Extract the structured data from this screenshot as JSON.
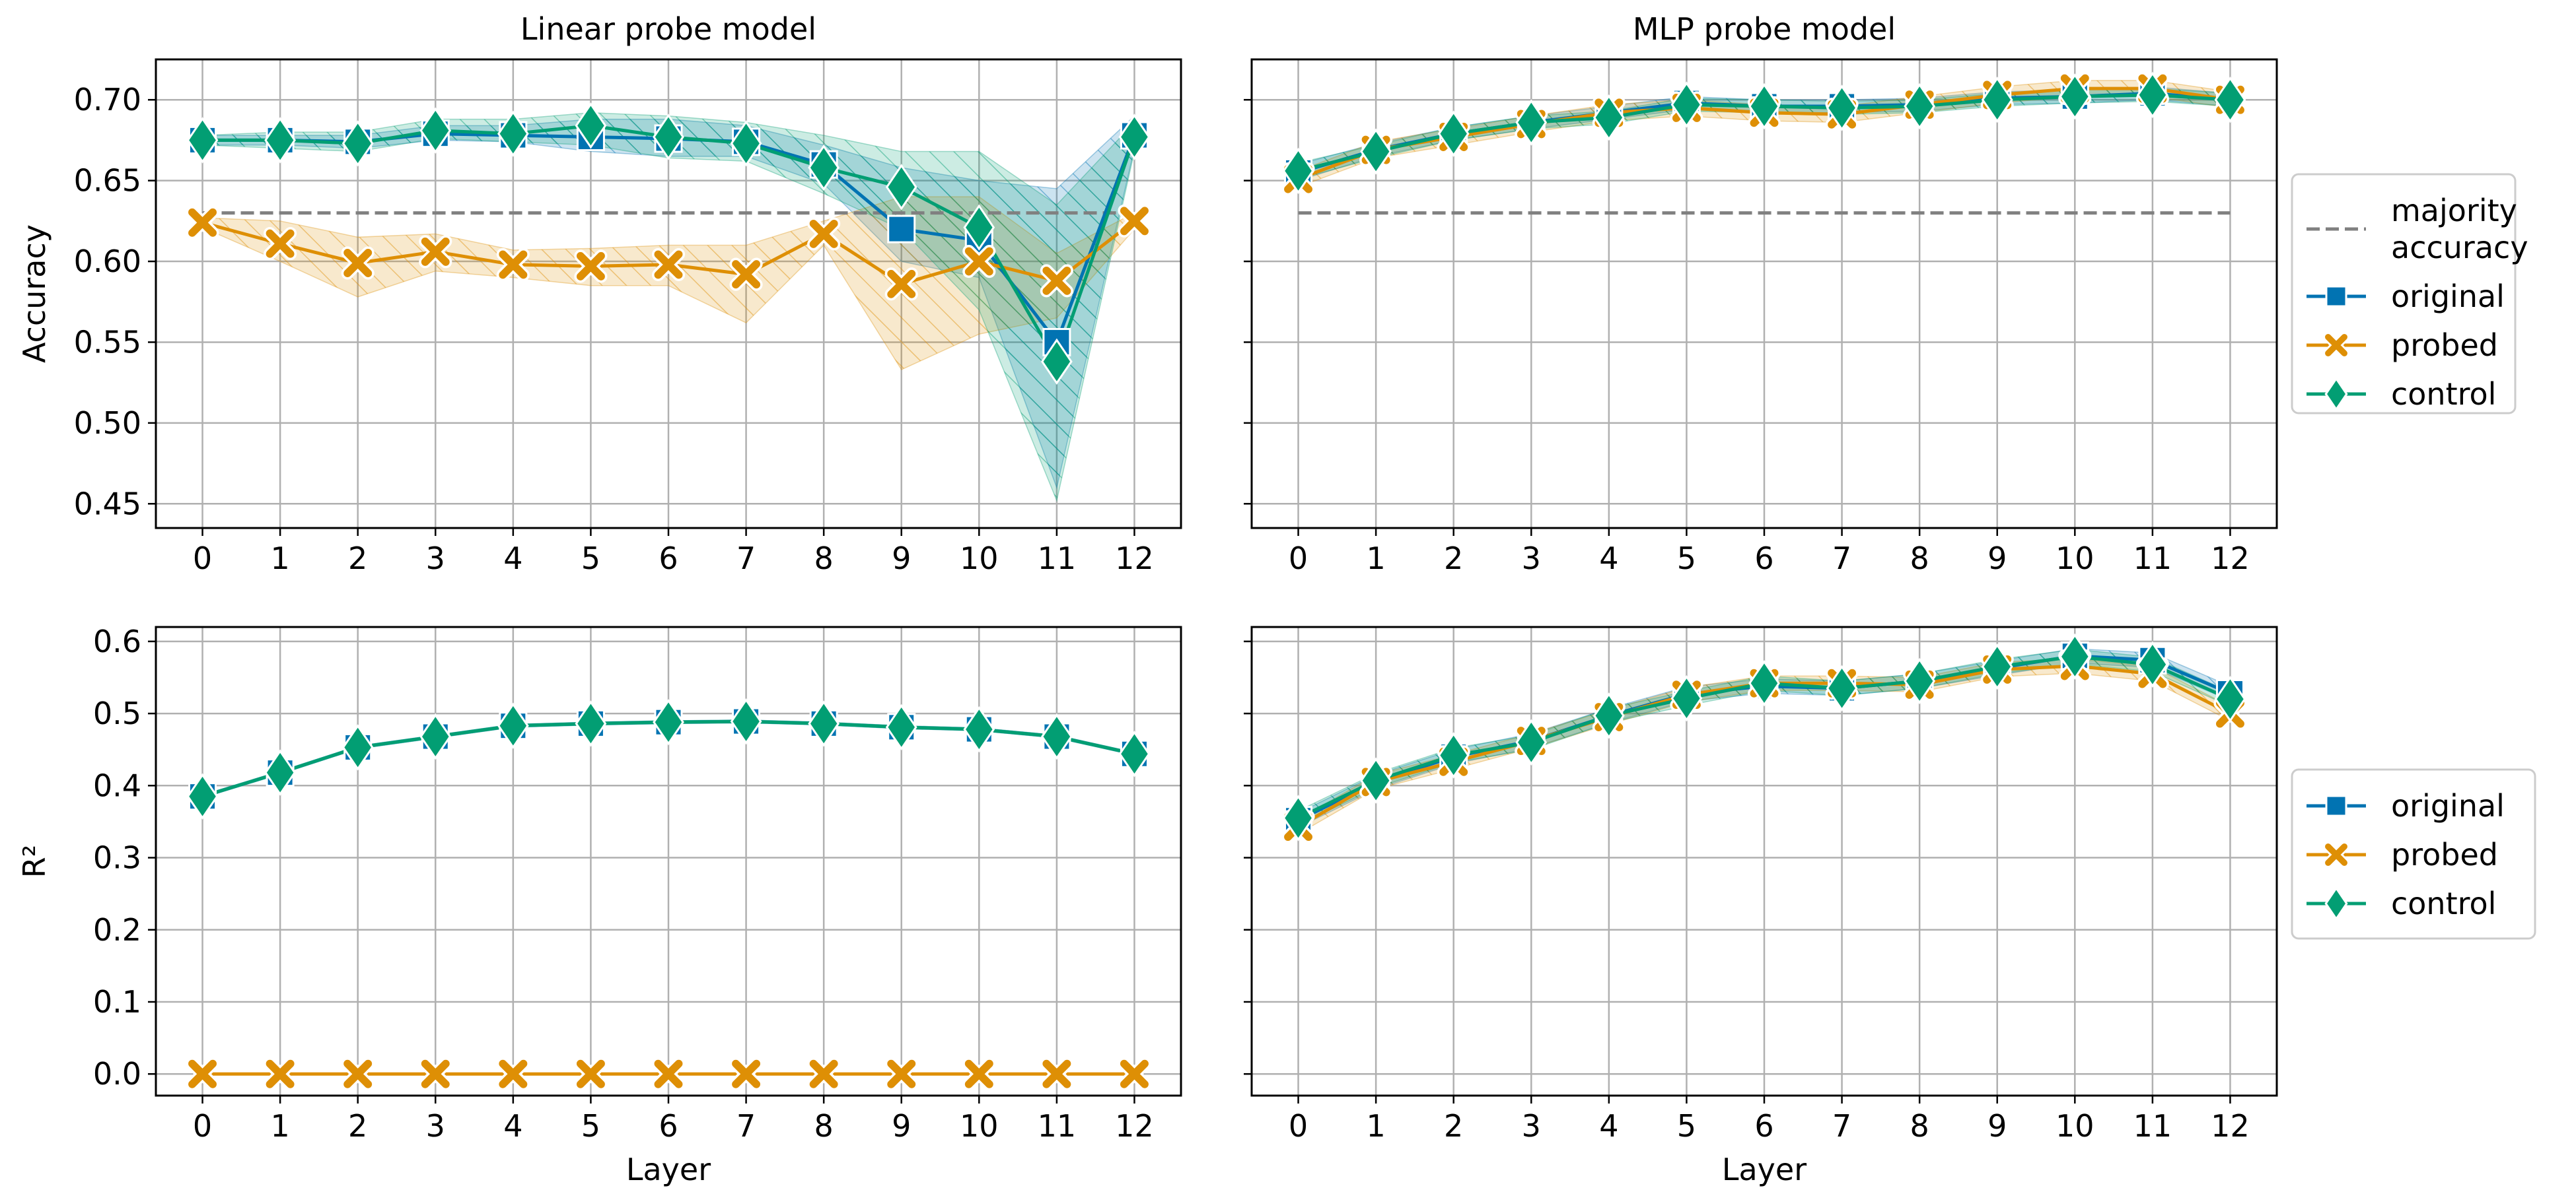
{
  "colors": {
    "original": "#0173b2",
    "probed": "#de8f05",
    "control": "#029e73",
    "majority": "#808080",
    "grid": "#b0b0b0"
  },
  "legends": {
    "top": {
      "entries": [
        {
          "series": "majority",
          "lines": [
            "majority",
            "accuracy"
          ],
          "marker": "dash"
        },
        {
          "series": "original",
          "lines": [
            "original"
          ],
          "marker": "square"
        },
        {
          "series": "probed",
          "lines": [
            "probed"
          ],
          "marker": "x"
        },
        {
          "series": "control",
          "lines": [
            "control"
          ],
          "marker": "diamond"
        }
      ]
    },
    "bottom": {
      "entries": [
        {
          "series": "original",
          "lines": [
            "original"
          ],
          "marker": "square"
        },
        {
          "series": "probed",
          "lines": [
            "probed"
          ],
          "marker": "x"
        },
        {
          "series": "control",
          "lines": [
            "control"
          ],
          "marker": "diamond"
        }
      ]
    }
  },
  "chart_data": [
    {
      "id": "acc-linear",
      "type": "line",
      "title": "Linear probe model",
      "xlabel": "",
      "ylabel": "Accuracy",
      "x": [
        0,
        1,
        2,
        3,
        4,
        5,
        6,
        7,
        8,
        9,
        10,
        11,
        12
      ],
      "ylim": [
        0.435,
        0.725
      ],
      "yticks": [
        0.45,
        0.5,
        0.55,
        0.6,
        0.65,
        0.7
      ],
      "yticklabels": [
        "0.45",
        "0.50",
        "0.55",
        "0.60",
        "0.65",
        "0.70"
      ],
      "grid": true,
      "reference_line": {
        "series": "majority",
        "value": 0.63,
        "style": "dashed"
      },
      "series": [
        {
          "name": "original",
          "values": [
            0.675,
            0.675,
            0.674,
            0.679,
            0.678,
            0.677,
            0.676,
            0.674,
            0.66,
            0.62,
            0.613,
            0.55,
            0.678
          ],
          "band_low": [
            0.672,
            0.672,
            0.67,
            0.675,
            0.674,
            0.668,
            0.665,
            0.665,
            0.648,
            0.6,
            0.59,
            0.46,
            0.67
          ],
          "band_high": [
            0.678,
            0.678,
            0.678,
            0.684,
            0.684,
            0.688,
            0.688,
            0.684,
            0.672,
            0.658,
            0.65,
            0.645,
            0.69
          ]
        },
        {
          "name": "probed",
          "values": [
            0.624,
            0.611,
            0.599,
            0.606,
            0.598,
            0.597,
            0.598,
            0.592,
            0.617,
            0.586,
            0.6,
            0.588,
            0.625
          ],
          "band_low": [
            0.621,
            0.6,
            0.578,
            0.594,
            0.59,
            0.585,
            0.585,
            0.562,
            0.61,
            0.533,
            0.555,
            0.565,
            0.62
          ],
          "band_high": [
            0.627,
            0.625,
            0.615,
            0.617,
            0.607,
            0.608,
            0.61,
            0.61,
            0.625,
            0.64,
            0.64,
            0.605,
            0.63
          ]
        },
        {
          "name": "control",
          "values": [
            0.675,
            0.675,
            0.673,
            0.681,
            0.679,
            0.684,
            0.677,
            0.673,
            0.658,
            0.646,
            0.621,
            0.538,
            0.677
          ],
          "band_low": [
            0.672,
            0.67,
            0.668,
            0.676,
            0.674,
            0.672,
            0.664,
            0.662,
            0.642,
            0.62,
            0.57,
            0.452,
            0.668
          ],
          "band_high": [
            0.678,
            0.68,
            0.68,
            0.688,
            0.688,
            0.692,
            0.69,
            0.686,
            0.678,
            0.668,
            0.668,
            0.635,
            0.686
          ]
        }
      ]
    },
    {
      "id": "acc-mlp",
      "type": "line",
      "title": "MLP probe model",
      "xlabel": "",
      "ylabel": "",
      "x": [
        0,
        1,
        2,
        3,
        4,
        5,
        6,
        7,
        8,
        9,
        10,
        11,
        12
      ],
      "ylim": [
        0.435,
        0.725
      ],
      "yticks": [
        0.45,
        0.5,
        0.55,
        0.6,
        0.65,
        0.7
      ],
      "yticklabels": [],
      "grid": true,
      "reference_line": {
        "series": "majority",
        "value": 0.63,
        "style": "dashed"
      },
      "series": [
        {
          "name": "original",
          "values": [
            0.655,
            0.669,
            0.679,
            0.686,
            0.692,
            0.698,
            0.696,
            0.696,
            0.697,
            0.701,
            0.702,
            0.704,
            0.7
          ],
          "band_low": [
            0.65,
            0.665,
            0.675,
            0.682,
            0.688,
            0.694,
            0.692,
            0.692,
            0.693,
            0.697,
            0.698,
            0.7,
            0.696
          ],
          "band_high": [
            0.66,
            0.673,
            0.683,
            0.69,
            0.696,
            0.702,
            0.7,
            0.7,
            0.701,
            0.705,
            0.706,
            0.708,
            0.704
          ]
        },
        {
          "name": "probed",
          "values": [
            0.651,
            0.669,
            0.677,
            0.685,
            0.692,
            0.695,
            0.692,
            0.691,
            0.697,
            0.703,
            0.707,
            0.707,
            0.7
          ],
          "band_low": [
            0.646,
            0.664,
            0.672,
            0.68,
            0.687,
            0.69,
            0.687,
            0.686,
            0.692,
            0.698,
            0.702,
            0.702,
            0.695
          ],
          "band_high": [
            0.656,
            0.674,
            0.682,
            0.69,
            0.697,
            0.7,
            0.697,
            0.696,
            0.702,
            0.708,
            0.712,
            0.712,
            0.705
          ]
        },
        {
          "name": "control",
          "values": [
            0.656,
            0.668,
            0.679,
            0.686,
            0.689,
            0.697,
            0.696,
            0.695,
            0.696,
            0.7,
            0.702,
            0.703,
            0.7
          ],
          "band_low": [
            0.651,
            0.664,
            0.675,
            0.682,
            0.685,
            0.693,
            0.692,
            0.691,
            0.692,
            0.696,
            0.698,
            0.699,
            0.696
          ],
          "band_high": [
            0.661,
            0.672,
            0.683,
            0.69,
            0.693,
            0.701,
            0.7,
            0.699,
            0.7,
            0.704,
            0.706,
            0.707,
            0.704
          ]
        }
      ]
    },
    {
      "id": "r2-linear",
      "type": "line",
      "title": "",
      "xlabel": "Layer",
      "ylabel": "R²",
      "x": [
        0,
        1,
        2,
        3,
        4,
        5,
        6,
        7,
        8,
        9,
        10,
        11,
        12
      ],
      "ylim": [
        -0.03,
        0.62
      ],
      "yticks": [
        0.0,
        0.1,
        0.2,
        0.3,
        0.4,
        0.5,
        0.6
      ],
      "yticklabels": [
        "0.0",
        "0.1",
        "0.2",
        "0.3",
        "0.4",
        "0.5",
        "0.6"
      ],
      "grid": true,
      "series": [
        {
          "name": "original",
          "values": [
            0.385,
            0.418,
            0.453,
            0.468,
            0.483,
            0.486,
            0.488,
            0.489,
            0.486,
            0.481,
            0.478,
            0.468,
            0.444
          ],
          "band_low": [
            0.383,
            0.416,
            0.451,
            0.466,
            0.481,
            0.484,
            0.486,
            0.487,
            0.484,
            0.479,
            0.476,
            0.466,
            0.442
          ],
          "band_high": [
            0.387,
            0.42,
            0.455,
            0.47,
            0.485,
            0.488,
            0.49,
            0.491,
            0.488,
            0.483,
            0.48,
            0.47,
            0.446
          ]
        },
        {
          "name": "probed",
          "values": [
            0.0,
            0.0,
            0.0,
            0.0,
            0.0,
            0.0,
            0.0,
            0.0,
            0.0,
            0.0,
            0.0,
            0.0,
            0.0
          ],
          "band_low": [
            0.0,
            0.0,
            0.0,
            0.0,
            0.0,
            0.0,
            0.0,
            0.0,
            0.0,
            0.0,
            0.0,
            0.0,
            0.0
          ],
          "band_high": [
            0.0,
            0.0,
            0.0,
            0.0,
            0.0,
            0.0,
            0.0,
            0.0,
            0.0,
            0.0,
            0.0,
            0.0,
            0.0
          ]
        },
        {
          "name": "control",
          "values": [
            0.385,
            0.418,
            0.453,
            0.468,
            0.483,
            0.486,
            0.488,
            0.489,
            0.486,
            0.481,
            0.478,
            0.468,
            0.444
          ],
          "band_low": [
            0.383,
            0.416,
            0.451,
            0.466,
            0.481,
            0.484,
            0.486,
            0.487,
            0.484,
            0.479,
            0.476,
            0.466,
            0.442
          ],
          "band_high": [
            0.387,
            0.42,
            0.455,
            0.47,
            0.485,
            0.488,
            0.49,
            0.491,
            0.488,
            0.483,
            0.48,
            0.47,
            0.446
          ]
        }
      ]
    },
    {
      "id": "r2-mlp",
      "type": "line",
      "title": "",
      "xlabel": "Layer",
      "ylabel": "",
      "x": [
        0,
        1,
        2,
        3,
        4,
        5,
        6,
        7,
        8,
        9,
        10,
        11,
        12
      ],
      "ylim": [
        -0.03,
        0.62
      ],
      "yticks": [
        0.0,
        0.1,
        0.2,
        0.3,
        0.4,
        0.5,
        0.6
      ],
      "yticklabels": [],
      "grid": true,
      "series": [
        {
          "name": "original",
          "values": [
            0.352,
            0.405,
            0.44,
            0.462,
            0.497,
            0.527,
            0.538,
            0.535,
            0.545,
            0.563,
            0.58,
            0.574,
            0.528
          ],
          "band_low": [
            0.342,
            0.395,
            0.43,
            0.452,
            0.487,
            0.517,
            0.528,
            0.525,
            0.535,
            0.553,
            0.57,
            0.564,
            0.518
          ],
          "band_high": [
            0.362,
            0.415,
            0.45,
            0.472,
            0.507,
            0.537,
            0.548,
            0.545,
            0.555,
            0.573,
            0.59,
            0.584,
            0.538
          ]
        },
        {
          "name": "probed",
          "values": [
            0.343,
            0.405,
            0.433,
            0.462,
            0.495,
            0.526,
            0.542,
            0.542,
            0.54,
            0.561,
            0.566,
            0.555,
            0.5
          ],
          "band_low": [
            0.333,
            0.395,
            0.423,
            0.452,
            0.485,
            0.516,
            0.532,
            0.532,
            0.53,
            0.551,
            0.556,
            0.545,
            0.49
          ],
          "band_high": [
            0.353,
            0.415,
            0.443,
            0.472,
            0.505,
            0.536,
            0.552,
            0.552,
            0.55,
            0.571,
            0.576,
            0.565,
            0.51
          ]
        },
        {
          "name": "control",
          "values": [
            0.355,
            0.407,
            0.442,
            0.46,
            0.497,
            0.521,
            0.542,
            0.535,
            0.545,
            0.565,
            0.579,
            0.568,
            0.52
          ],
          "band_low": [
            0.345,
            0.397,
            0.432,
            0.45,
            0.487,
            0.511,
            0.532,
            0.525,
            0.535,
            0.555,
            0.569,
            0.558,
            0.51
          ],
          "band_high": [
            0.365,
            0.417,
            0.452,
            0.47,
            0.507,
            0.531,
            0.552,
            0.545,
            0.555,
            0.575,
            0.589,
            0.578,
            0.53
          ]
        }
      ]
    }
  ]
}
